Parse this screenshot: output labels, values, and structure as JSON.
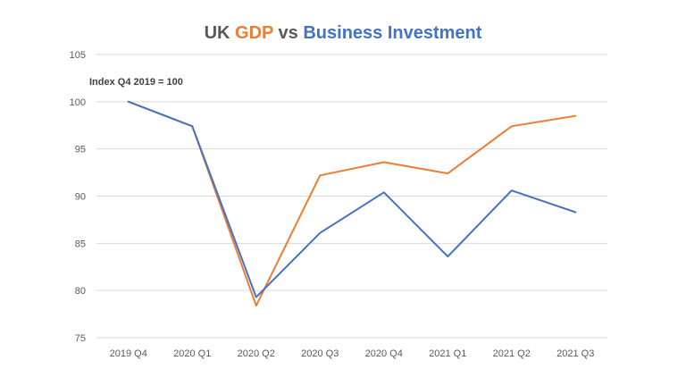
{
  "chart_data": {
    "type": "line",
    "title_parts": [
      {
        "text": "UK ",
        "role": "plain"
      },
      {
        "text": "GDP",
        "role": "gdp"
      },
      {
        "text": " vs ",
        "role": "plain"
      },
      {
        "text": "Business Investment",
        "role": "bi"
      }
    ],
    "annotation": "Index Q4 2019 = 100",
    "categories": [
      "2019 Q4",
      "2020 Q1",
      "2020 Q2",
      "2020 Q3",
      "2020 Q4",
      "2021 Q1",
      "2021 Q2",
      "2021 Q3"
    ],
    "series": [
      {
        "id": "gdp",
        "color": "#ed7d31",
        "values": [
          100,
          97.4,
          78.4,
          92.2,
          93.6,
          92.4,
          97.4,
          98.5
        ]
      },
      {
        "id": "business-investment",
        "color": "#4472c4",
        "values": [
          100,
          97.4,
          79.3,
          86.1,
          90.4,
          83.6,
          90.6,
          88.3
        ]
      }
    ],
    "ylim": [
      75,
      105
    ],
    "yticks": [
      75,
      80,
      85,
      90,
      95,
      100,
      105
    ],
    "grid": true,
    "legend": "none"
  }
}
